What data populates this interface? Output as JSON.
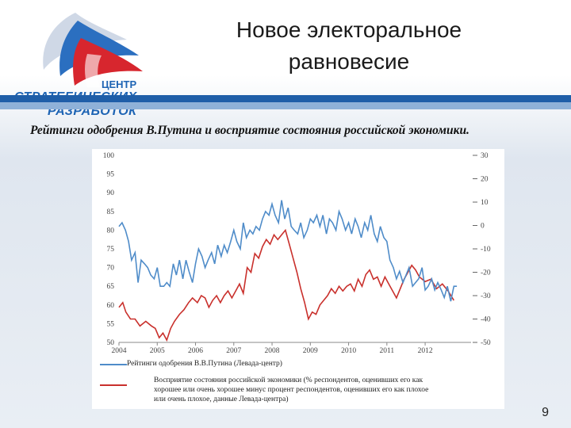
{
  "header": {
    "title_line1": "Новое электоральное",
    "title_line2": "равновесие"
  },
  "logo": {
    "text_top": "ЦЕНТР",
    "text_mid": "СТРАТЕГИЧЕСКИХ",
    "text_bottom": "РАЗРАБОТОК"
  },
  "subtitle": "Рейтинги одобрения В.Путина и восприятие состояния российской экономики.",
  "page_number": "9",
  "colors": {
    "approval": "#4f8cc9",
    "economy": "#c9302c",
    "stripe_dark": "#1f5ea8"
  },
  "chart_data": {
    "type": "line",
    "title": "",
    "x_ticks": [
      "2004",
      "2005",
      "2006",
      "2007",
      "2008",
      "2009",
      "2010",
      "2011",
      "2012"
    ],
    "xlim": [
      2004,
      2013.2
    ],
    "y_left": {
      "ticks": [
        "100",
        "95",
        "90",
        "85",
        "80",
        "75",
        "70",
        "65",
        "60",
        "55",
        "50"
      ],
      "ylim": [
        50,
        100
      ]
    },
    "y_right": {
      "ticks": [
        "30",
        "20",
        "10",
        "0",
        "-10",
        "-20",
        "-30",
        "-40",
        "-50"
      ],
      "ylim": [
        -50,
        30
      ]
    },
    "series": [
      {
        "name": "Рейтинги одобрения В.В.Путина (Левада-центр)",
        "axis": "left",
        "color": "#4f8cc9",
        "x": [
          2004.0,
          2004.08,
          2004.17,
          2004.25,
          2004.33,
          2004.42,
          2004.5,
          2004.58,
          2004.67,
          2004.75,
          2004.83,
          2004.92,
          2005.0,
          2005.08,
          2005.17,
          2005.25,
          2005.33,
          2005.42,
          2005.5,
          2005.58,
          2005.67,
          2005.75,
          2005.83,
          2005.92,
          2006.0,
          2006.08,
          2006.17,
          2006.25,
          2006.33,
          2006.42,
          2006.5,
          2006.58,
          2006.67,
          2006.75,
          2006.83,
          2006.92,
          2007.0,
          2007.08,
          2007.17,
          2007.25,
          2007.33,
          2007.42,
          2007.5,
          2007.58,
          2007.67,
          2007.75,
          2007.83,
          2007.92,
          2008.0,
          2008.08,
          2008.17,
          2008.25,
          2008.33,
          2008.42,
          2008.5,
          2008.58,
          2008.67,
          2008.75,
          2008.83,
          2008.92,
          2009.0,
          2009.08,
          2009.17,
          2009.25,
          2009.33,
          2009.42,
          2009.5,
          2009.58,
          2009.67,
          2009.75,
          2009.83,
          2009.92,
          2010.0,
          2010.08,
          2010.17,
          2010.25,
          2010.33,
          2010.42,
          2010.5,
          2010.58,
          2010.67,
          2010.75,
          2010.83,
          2010.92,
          2011.0,
          2011.08,
          2011.17,
          2011.25,
          2011.33,
          2011.42,
          2011.5,
          2011.58,
          2011.67,
          2011.75,
          2011.83,
          2011.92,
          2012.0,
          2012.08,
          2012.17,
          2012.25,
          2012.33,
          2012.42,
          2012.5,
          2012.58,
          2012.67,
          2012.75,
          2012.83
        ],
        "y": [
          81,
          82,
          80,
          77,
          72,
          74,
          66,
          72,
          71,
          70,
          68,
          67,
          70,
          65,
          65,
          66,
          65,
          71,
          68,
          72,
          67,
          72,
          69,
          66,
          71,
          75,
          73,
          70,
          72,
          74,
          71,
          76,
          73,
          76,
          74,
          77,
          80,
          77,
          75,
          82,
          78,
          80,
          79,
          81,
          80,
          83,
          85,
          84,
          87,
          84,
          82,
          88,
          83,
          86,
          81,
          80,
          79,
          82,
          78,
          80,
          83,
          82,
          84,
          81,
          84,
          79,
          83,
          82,
          80,
          85,
          83,
          80,
          82,
          79,
          83,
          81,
          78,
          82,
          80,
          84,
          79,
          77,
          81,
          78,
          77,
          72,
          70,
          67,
          69,
          66,
          68,
          70,
          65,
          66,
          67,
          70,
          64,
          65,
          67,
          64,
          66,
          64,
          62,
          65,
          61,
          65,
          65
        ],
        "clip_y_max": 100
      },
      {
        "name": "Восприятие состояния российской экономики (% респондентов, оценивших его как хорошее или очень хорошее минус процент респондентов, оценивших его как плохое или очень плохое, данные Левада-центра)",
        "axis": "right",
        "color": "#c9302c",
        "x": [
          2004.0,
          2004.25,
          2004.5,
          2004.75,
          2005.0,
          2005.25,
          2005.5,
          2005.75,
          2006.0,
          2006.25,
          2006.5,
          2006.75,
          2007.0,
          2007.25,
          2007.5,
          2007.75,
          2008.0,
          2008.25,
          2008.5,
          2008.75,
          2009.0,
          2009.25,
          2009.5,
          2009.75,
          2010.0,
          2010.25,
          2010.5,
          2010.75,
          2011.0,
          2011.25,
          2011.5,
          2011.75,
          2012.0,
          2012.25,
          2012.5,
          2012.75
        ],
        "y": [
          -34,
          -35,
          -40,
          -42,
          -45,
          -48,
          -40,
          -36,
          -32,
          -34,
          -31,
          -28,
          -25,
          -10,
          -6,
          -1,
          -5,
          -2,
          -18,
          -28,
          -40,
          -38,
          -32,
          -29,
          -26,
          -27,
          -22,
          -25,
          -30,
          -26,
          -21,
          -18,
          -22,
          -24,
          -28,
          -32
        ],
        "series_pts": [
          [
            2004.0,
            -35
          ],
          [
            2004.1,
            -33
          ],
          [
            2004.18,
            -37
          ],
          [
            2004.3,
            -40
          ],
          [
            2004.42,
            -40
          ],
          [
            2004.55,
            -43
          ],
          [
            2004.7,
            -41
          ],
          [
            2004.85,
            -43
          ],
          [
            2004.95,
            -44
          ],
          [
            2005.05,
            -48
          ],
          [
            2005.15,
            -46
          ],
          [
            2005.25,
            -49
          ],
          [
            2005.35,
            -44
          ],
          [
            2005.45,
            -41
          ],
          [
            2005.58,
            -38
          ],
          [
            2005.7,
            -36
          ],
          [
            2005.82,
            -33
          ],
          [
            2005.92,
            -31
          ],
          [
            2006.05,
            -33
          ],
          [
            2006.15,
            -30
          ],
          [
            2006.25,
            -31
          ],
          [
            2006.35,
            -35
          ],
          [
            2006.45,
            -32
          ],
          [
            2006.55,
            -30
          ],
          [
            2006.65,
            -33
          ],
          [
            2006.75,
            -30
          ],
          [
            2006.85,
            -28
          ],
          [
            2006.95,
            -31
          ],
          [
            2007.05,
            -28
          ],
          [
            2007.15,
            -25
          ],
          [
            2007.25,
            -29
          ],
          [
            2007.35,
            -18
          ],
          [
            2007.45,
            -20
          ],
          [
            2007.55,
            -12
          ],
          [
            2007.65,
            -14
          ],
          [
            2007.75,
            -9
          ],
          [
            2007.85,
            -6
          ],
          [
            2007.95,
            -8
          ],
          [
            2008.05,
            -4
          ],
          [
            2008.15,
            -6
          ],
          [
            2008.25,
            -4
          ],
          [
            2008.35,
            -2
          ],
          [
            2008.45,
            -8
          ],
          [
            2008.55,
            -14
          ],
          [
            2008.65,
            -20
          ],
          [
            2008.75,
            -27
          ],
          [
            2008.85,
            -33
          ],
          [
            2008.95,
            -40
          ],
          [
            2009.05,
            -37
          ],
          [
            2009.15,
            -38
          ],
          [
            2009.25,
            -34
          ],
          [
            2009.35,
            -32
          ],
          [
            2009.45,
            -30
          ],
          [
            2009.55,
            -27
          ],
          [
            2009.65,
            -29
          ],
          [
            2009.75,
            -26
          ],
          [
            2009.85,
            -28
          ],
          [
            2009.95,
            -26
          ],
          [
            2010.05,
            -25
          ],
          [
            2010.15,
            -28
          ],
          [
            2010.25,
            -23
          ],
          [
            2010.35,
            -26
          ],
          [
            2010.45,
            -21
          ],
          [
            2010.55,
            -19
          ],
          [
            2010.65,
            -23
          ],
          [
            2010.75,
            -22
          ],
          [
            2010.85,
            -26
          ],
          [
            2010.95,
            -22
          ],
          [
            2011.05,
            -25
          ],
          [
            2011.15,
            -28
          ],
          [
            2011.25,
            -31
          ],
          [
            2011.35,
            -27
          ],
          [
            2011.45,
            -23
          ],
          [
            2011.55,
            -20
          ],
          [
            2011.65,
            -17
          ],
          [
            2011.75,
            -19
          ],
          [
            2011.85,
            -22
          ],
          [
            2012.0,
            -24
          ],
          [
            2012.15,
            -23
          ],
          [
            2012.3,
            -27
          ],
          [
            2012.45,
            -25
          ],
          [
            2012.6,
            -28
          ],
          [
            2012.75,
            -32
          ]
        ]
      }
    ],
    "legend": [
      {
        "label": "Рейтинги одобрения В.В.Путина (Левада-центр)"
      },
      {
        "label_lines": [
          "Восприятие состояния российской экономики (% респондентов, оценивших его как",
          "хорошее или очень хорошее минус процент   респондентов, оценивших его как плохое",
          "или очень плохое, данные Левада-центра)"
        ]
      }
    ],
    "legend_position": "bottom",
    "grid": false
  }
}
